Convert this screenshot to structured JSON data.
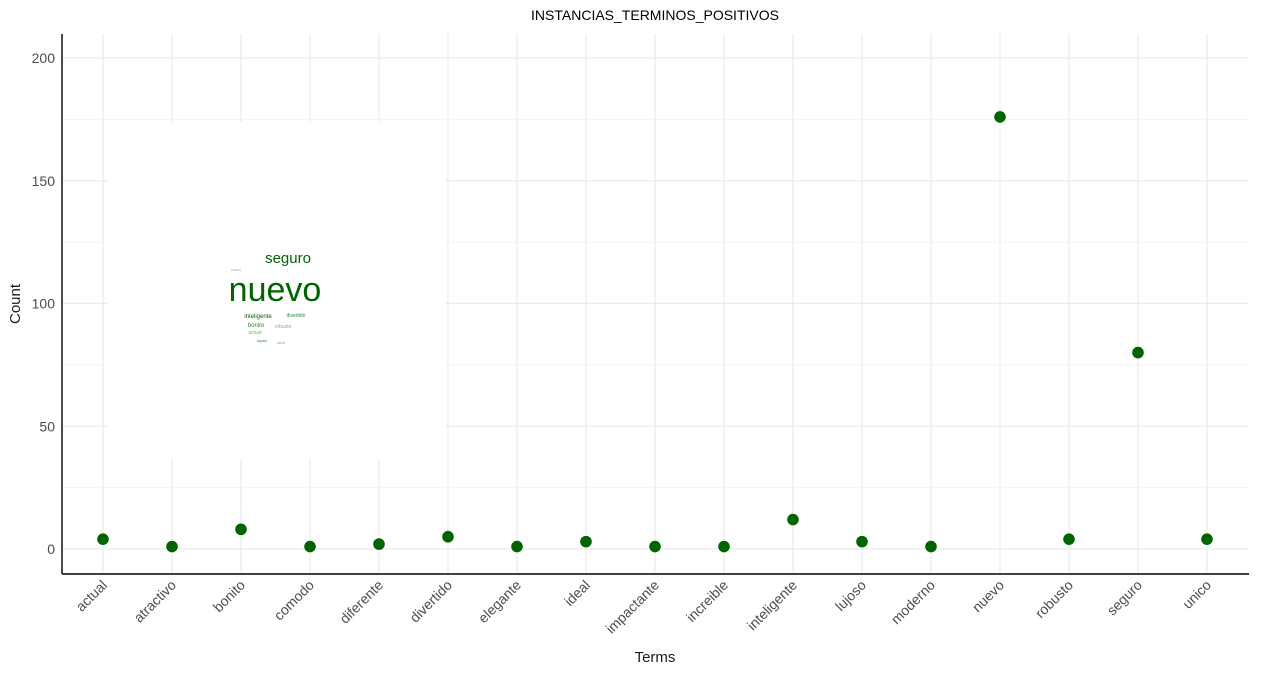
{
  "chart_data": {
    "type": "scatter",
    "title": "INSTANCIAS_TERMINOS_POSITIVOS",
    "xlabel": "Terms",
    "ylabel": "Count",
    "categories": [
      "actual",
      "atractivo",
      "bonito",
      "comodo",
      "diferente",
      "divertido",
      "elegante",
      "ideal",
      "impactante",
      "increible",
      "inteligente",
      "lujoso",
      "moderno",
      "nuevo",
      "robusto",
      "seguro",
      "unico"
    ],
    "values": [
      4,
      1,
      8,
      1,
      2,
      5,
      1,
      3,
      1,
      1,
      12,
      3,
      1,
      176,
      4,
      80,
      4
    ],
    "ylim": [
      -10,
      210
    ],
    "yticks": [
      0,
      50,
      100,
      150,
      200
    ],
    "point_color": "#006400",
    "grid": true,
    "legend": "none"
  },
  "wordcloud": {
    "words": [
      {
        "text": "nuevo"
      },
      {
        "text": "seguro"
      },
      {
        "text": "unico"
      },
      {
        "text": "inteligente"
      },
      {
        "text": "divertido"
      },
      {
        "text": "bonito"
      },
      {
        "text": "robusto"
      },
      {
        "text": "actual"
      },
      {
        "text": "lujoso"
      },
      {
        "text": "ideal"
      }
    ],
    "colors": [
      "#006400",
      "#2e8b2e",
      "#7cb87c"
    ]
  }
}
